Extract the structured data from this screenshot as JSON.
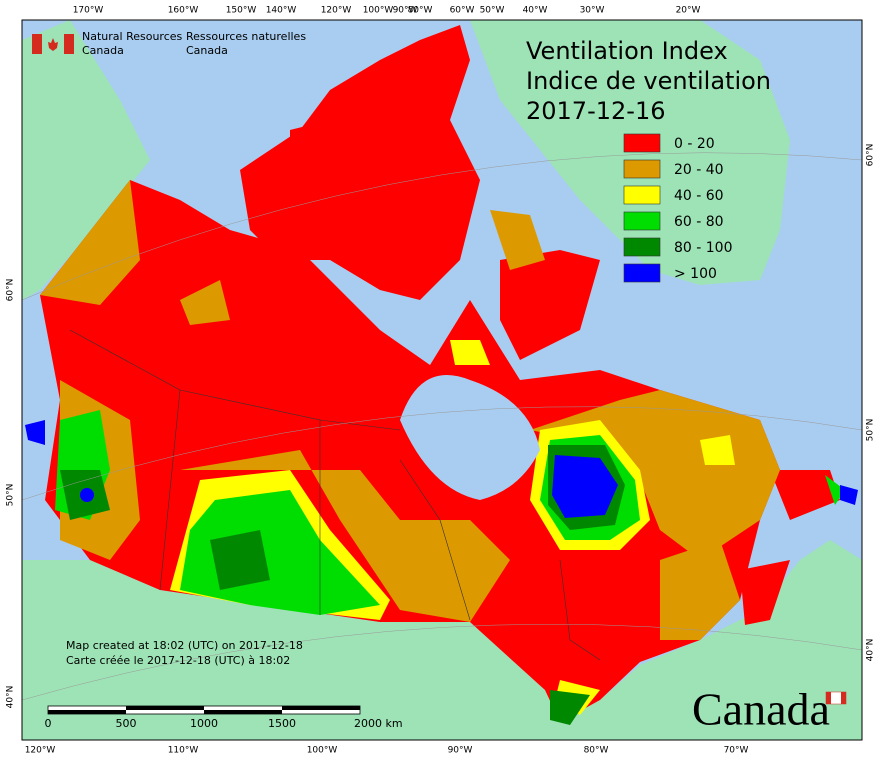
{
  "agency": {
    "en": [
      "Natural Resources",
      "Canada"
    ],
    "fr": [
      "Ressources naturelles",
      "Canada"
    ]
  },
  "title": [
    "Ventilation Index",
    "Indice de ventilation",
    "2017-12-16"
  ],
  "legend": [
    {
      "label": "0 - 20",
      "color": "#ff0000"
    },
    {
      "label": "20 - 40",
      "color": "#dd9900"
    },
    {
      "label": "40 - 60",
      "color": "#ffff00"
    },
    {
      "label": "60 - 80",
      "color": "#00dd00"
    },
    {
      "label": "80 - 100",
      "color": "#008800"
    },
    {
      "label": "> 100",
      "color": "#0000ff"
    }
  ],
  "graticule": {
    "top": [
      "170°W",
      "160°W",
      "150°W",
      "140°W",
      "120°W",
      "100°W",
      "90°W",
      "80°W",
      "60°W",
      "50°W",
      "40°W",
      "30°W",
      "20°W"
    ],
    "bottom": [
      "120°W",
      "110°W",
      "100°W",
      "90°W",
      "80°W",
      "70°W"
    ],
    "left": [
      "60°N",
      "50°N",
      "40°N"
    ],
    "right": [
      "60°N",
      "50°N",
      "40°N"
    ]
  },
  "scale_bar": [
    "0",
    "500",
    "1000",
    "1500",
    "2000  km"
  ],
  "footer": [
    "Map created at 18:02 (UTC) on 2017-12-18",
    "Carte créée le 2017-12-18 (UTC) à 18:02"
  ],
  "wordmark": "Canada"
}
